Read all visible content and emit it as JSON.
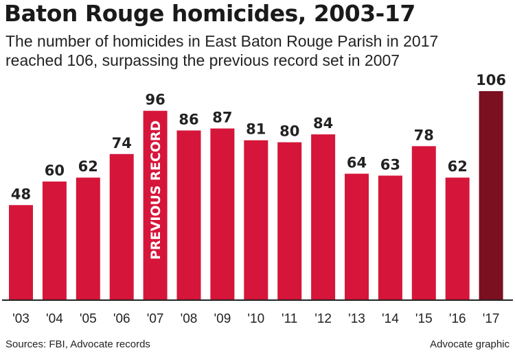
{
  "title": "Baton Rouge homicides, 2003-17",
  "subtitle": "The number of homicides in East Baton Rouge Parish in 2017 reached 106, surpassing the previous record set in 2007",
  "footer": {
    "source": "Sources: FBI, Advocate records",
    "credit": "Advocate graphic"
  },
  "colors": {
    "bar": "#d5163a",
    "highlight": "#7b1020",
    "axis": "#222222"
  },
  "chart_data": {
    "type": "bar",
    "categories": [
      "'03",
      "'04",
      "'05",
      "'06",
      "'07",
      "'08",
      "'09",
      "'10",
      "'11",
      "'12",
      "'13",
      "'14",
      "'15",
      "'16",
      "'17"
    ],
    "values": [
      48,
      60,
      62,
      74,
      96,
      86,
      87,
      81,
      80,
      84,
      64,
      63,
      78,
      62,
      106
    ],
    "highlight_category": "'17",
    "annotation": {
      "category": "'07",
      "text": "PREVIOUS RECORD"
    },
    "ylim": [
      0,
      106
    ],
    "grid": false,
    "legend": "none"
  }
}
